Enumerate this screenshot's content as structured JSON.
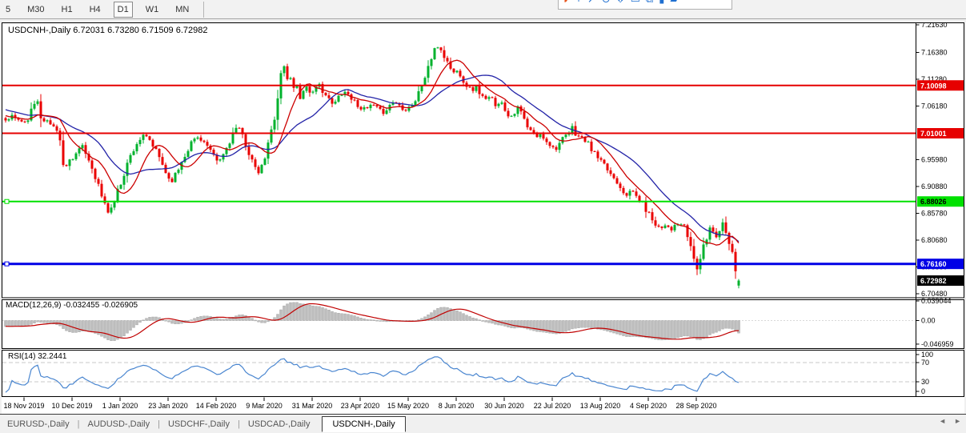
{
  "toolbar": {
    "timeframes": [
      {
        "label": "5",
        "active": false
      },
      {
        "label": "M30",
        "active": false
      },
      {
        "label": "H1",
        "active": false
      },
      {
        "label": "H4",
        "active": false
      },
      {
        "label": "D1",
        "active": true
      },
      {
        "label": "W1",
        "active": false
      },
      {
        "label": "MN",
        "active": false
      }
    ],
    "icons": [
      {
        "name": "brand-logo-icon",
        "glyph": "◗",
        "brand": true
      },
      {
        "name": "crosshair-icon",
        "glyph": "+"
      },
      {
        "name": "draw-line-icon",
        "glyph": "↗"
      },
      {
        "name": "clock-icon",
        "glyph": "⊙"
      },
      {
        "name": "download-icon",
        "glyph": "⇩"
      },
      {
        "name": "window-icon",
        "glyph": "▭"
      },
      {
        "name": "cascade-windows-icon",
        "glyph": "⧉"
      },
      {
        "name": "tile-window-icon",
        "glyph": "▮"
      },
      {
        "name": "tile-windows-icon",
        "glyph": "▰"
      }
    ]
  },
  "chart": {
    "title": "USDCNH-,Daily",
    "ohlc_text": "6.72031 6.73280 6.71509 6.72982"
  },
  "macd": {
    "label": "MACD(12,26,9)",
    "values_text": "-0.032455 -0.026905",
    "axis": [
      "0.039044",
      "0.00",
      "-0.046959"
    ]
  },
  "rsi": {
    "label": "RSI(14)",
    "value_text": "32.2441",
    "axis": [
      "100",
      "70",
      "30",
      "0"
    ]
  },
  "dates": [
    "18 Nov 2019",
    "10 Dec 2019",
    "1 Jan 2020",
    "23 Jan 2020",
    "14 Feb 2020",
    "9 Mar 2020",
    "31 Mar 2020",
    "23 Apr 2020",
    "15 May 2020",
    "8 Jun 2020",
    "30 Jun 2020",
    "22 Jul 2020",
    "13 Aug 2020",
    "4 Sep 2020",
    "28 Sep 2020"
  ],
  "tabs": [
    {
      "label": "EURUSD-,Daily",
      "active": false
    },
    {
      "label": "AUDUSD-,Daily",
      "active": false
    },
    {
      "label": "USDCHF-,Daily",
      "active": false
    },
    {
      "label": "USDCAD-,Daily",
      "active": false
    },
    {
      "label": "USDCNH-,Daily",
      "active": true
    }
  ],
  "tabs_ui": {
    "separator": "|",
    "scroll_left": "◄",
    "scroll_right": "►"
  },
  "chart_data": {
    "type": "candlestick",
    "symbol": "USDCNH-",
    "timeframe": "Daily",
    "last_ohlc": {
      "open": 6.72031,
      "high": 6.7328,
      "low": 6.71509,
      "close": 6.72982
    },
    "current_price_label": "6.72982",
    "y_axis": {
      "ticks": [
        "7.21630",
        "7.16380",
        "7.11280",
        "7.06180",
        "6.95980",
        "6.90880",
        "6.85780",
        "6.80680",
        "6.75580",
        "6.70480"
      ],
      "top_price": 7.2163,
      "bottom_price": 6.7048
    },
    "horizontal_levels": [
      {
        "label": "7.10098",
        "price": 7.10098,
        "color": "#e60000",
        "width": 2,
        "text": "#fff"
      },
      {
        "label": "7.01001",
        "price": 7.01001,
        "color": "#e60000",
        "width": 2,
        "text": "#fff"
      },
      {
        "label": "6.88026",
        "price": 6.88026,
        "color": "#00e100",
        "width": 2,
        "text": "#000",
        "marker": true
      },
      {
        "label": "6.76160",
        "price": 6.7616,
        "color": "#0000e6",
        "width": 3,
        "text": "#fff",
        "marker": true
      }
    ],
    "moving_averages": [
      {
        "name": "ma-fast",
        "period": 10,
        "color": "#cc0000"
      },
      {
        "name": "ma-slow",
        "period": 22,
        "color": "#2424a8"
      }
    ],
    "indicators": [
      {
        "name": "MACD",
        "params": [
          12,
          26,
          9
        ],
        "current": [
          -0.032455,
          -0.026905
        ],
        "axis_max": 0.039044,
        "axis_min": -0.046959
      },
      {
        "name": "RSI",
        "params": [
          14
        ],
        "current": 32.2441,
        "levels": [
          70,
          30
        ],
        "axis": [
          100,
          70,
          30,
          0
        ]
      }
    ],
    "colors": {
      "bull": "#00b22d",
      "bear": "#ea0000",
      "macd_bar": "#bdbdbd",
      "macd_signal": "#c00000",
      "rsi_line": "#4a86d0",
      "axis_text": "#000000"
    },
    "price_path": [
      [
        7,
        7.036
      ],
      [
        16,
        7.044
      ],
      [
        24,
        7.034
      ],
      [
        32,
        7.028
      ],
      [
        38,
        7.05
      ],
      [
        43,
        7.062
      ],
      [
        47,
        7.072
      ],
      [
        50,
        7.048
      ],
      [
        56,
        7.035
      ],
      [
        62,
        7.028
      ],
      [
        68,
        7.022
      ],
      [
        74,
        7.014
      ],
      [
        78,
        6.944
      ],
      [
        83,
        6.952
      ],
      [
        89,
        6.962
      ],
      [
        96,
        6.974
      ],
      [
        102,
        6.986
      ],
      [
        107,
        6.972
      ],
      [
        113,
        6.952
      ],
      [
        119,
        6.93
      ],
      [
        125,
        6.9
      ],
      [
        130,
        6.878
      ],
      [
        134,
        6.859
      ],
      [
        139,
        6.868
      ],
      [
        145,
        6.89
      ],
      [
        152,
        6.922
      ],
      [
        159,
        6.952
      ],
      [
        166,
        6.978
      ],
      [
        173,
        6.996
      ],
      [
        180,
        7.005
      ],
      [
        187,
        6.996
      ],
      [
        194,
        6.978
      ],
      [
        201,
        6.958
      ],
      [
        207,
        6.937
      ],
      [
        213,
        6.917
      ],
      [
        219,
        6.93
      ],
      [
        225,
        6.95
      ],
      [
        231,
        6.97
      ],
      [
        238,
        6.99
      ],
      [
        245,
        7.003
      ],
      [
        252,
        6.999
      ],
      [
        259,
        6.985
      ],
      [
        266,
        6.966
      ],
      [
        273,
        6.954
      ],
      [
        280,
        6.972
      ],
      [
        287,
        6.996
      ],
      [
        294,
        7.02
      ],
      [
        301,
        7.013
      ],
      [
        308,
        6.986
      ],
      [
        315,
        6.958
      ],
      [
        321,
        6.931
      ],
      [
        327,
        6.944
      ],
      [
        333,
        6.974
      ],
      [
        339,
        7.014
      ],
      [
        345,
        7.06
      ],
      [
        350,
        7.112
      ],
      [
        354,
        7.148
      ],
      [
        358,
        7.106
      ],
      [
        362,
        7.128
      ],
      [
        366,
        7.088
      ],
      [
        370,
        7.112
      ],
      [
        374,
        7.077
      ],
      [
        379,
        7.09
      ],
      [
        384,
        7.102
      ],
      [
        389,
        7.083
      ],
      [
        394,
        7.092
      ],
      [
        399,
        7.102
      ],
      [
        405,
        7.088
      ],
      [
        411,
        7.073
      ],
      [
        417,
        7.062
      ],
      [
        423,
        7.08
      ],
      [
        429,
        7.091
      ],
      [
        436,
        7.083
      ],
      [
        443,
        7.07
      ],
      [
        450,
        7.06
      ],
      [
        457,
        7.054
      ],
      [
        464,
        7.064
      ],
      [
        471,
        7.057
      ],
      [
        478,
        7.049
      ],
      [
        485,
        7.06
      ],
      [
        492,
        7.071
      ],
      [
        499,
        7.063
      ],
      [
        506,
        7.055
      ],
      [
        513,
        7.063
      ],
      [
        519,
        7.072
      ],
      [
        525,
        7.094
      ],
      [
        531,
        7.118
      ],
      [
        537,
        7.146
      ],
      [
        543,
        7.166
      ],
      [
        548,
        7.177
      ],
      [
        553,
        7.163
      ],
      [
        558,
        7.147
      ],
      [
        563,
        7.135
      ],
      [
        568,
        7.123
      ],
      [
        573,
        7.131
      ],
      [
        578,
        7.113
      ],
      [
        583,
        7.102
      ],
      [
        589,
        7.091
      ],
      [
        595,
        7.098
      ],
      [
        601,
        7.083
      ],
      [
        607,
        7.073
      ],
      [
        613,
        7.079
      ],
      [
        619,
        7.065
      ],
      [
        625,
        7.071
      ],
      [
        631,
        7.056
      ],
      [
        637,
        7.041
      ],
      [
        643,
        7.051
      ],
      [
        648,
        7.06
      ],
      [
        653,
        7.043
      ],
      [
        658,
        7.022
      ],
      [
        664,
        7.012
      ],
      [
        670,
        7.003
      ],
      [
        676,
        7.007
      ],
      [
        682,
        6.998
      ],
      [
        688,
        6.988
      ],
      [
        693,
        6.979
      ],
      [
        698,
        6.989
      ],
      [
        704,
        7.0
      ],
      [
        710,
        7.007
      ],
      [
        714,
        7.024
      ],
      [
        718,
        7.012
      ],
      [
        724,
        7.003
      ],
      [
        730,
        6.998
      ],
      [
        736,
        6.987
      ],
      [
        742,
        6.973
      ],
      [
        748,
        6.961
      ],
      [
        754,
        6.949
      ],
      [
        760,
        6.939
      ],
      [
        766,
        6.927
      ],
      [
        772,
        6.917
      ],
      [
        778,
        6.902
      ],
      [
        784,
        6.893
      ],
      [
        790,
        6.901
      ],
      [
        796,
        6.888
      ],
      [
        802,
        6.878
      ],
      [
        808,
        6.863
      ],
      [
        814,
        6.849
      ],
      [
        820,
        6.837
      ],
      [
        826,
        6.829
      ],
      [
        832,
        6.839
      ],
      [
        838,
        6.827
      ],
      [
        844,
        6.833
      ],
      [
        850,
        6.839
      ],
      [
        856,
        6.827
      ],
      [
        861,
        6.807
      ],
      [
        866,
        6.775
      ],
      [
        871,
        6.753
      ],
      [
        875,
        6.771
      ],
      [
        879,
        6.791
      ],
      [
        883,
        6.811
      ],
      [
        887,
        6.831
      ],
      [
        892,
        6.822
      ],
      [
        896,
        6.813
      ],
      [
        900,
        6.832
      ],
      [
        904,
        6.842
      ],
      [
        908,
        6.823
      ],
      [
        912,
        6.802
      ],
      [
        916,
        6.772
      ],
      [
        920,
        6.748
      ],
      [
        923,
        6.7298
      ]
    ]
  }
}
